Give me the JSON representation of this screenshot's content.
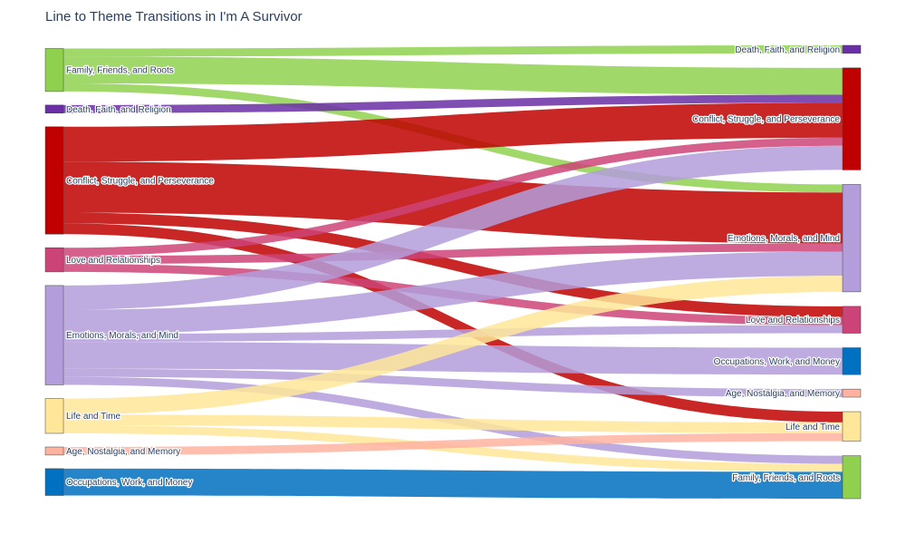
{
  "chart_data": {
    "type": "sankey",
    "title": "Line to Theme Transitions in I'm A Survivor",
    "source_nodes": [
      {
        "id": "s_family",
        "label": "Family, Friends, and Roots",
        "color": "#8fd14f"
      },
      {
        "id": "s_death",
        "label": "Death, Faith, and Religion",
        "color": "#6a2ea6"
      },
      {
        "id": "s_conflict",
        "label": "Conflict, Struggle, and Perseverance",
        "color": "#c00000"
      },
      {
        "id": "s_love",
        "label": "Love and Relationships",
        "color": "#cc4477"
      },
      {
        "id": "s_emotions",
        "label": "Emotions, Morals, and Mind",
        "color": "#b39ddb"
      },
      {
        "id": "s_life",
        "label": "Life and Time",
        "color": "#ffe699"
      },
      {
        "id": "s_age",
        "label": "Age, Nostalgia, and Memory",
        "color": "#ffb3a0"
      },
      {
        "id": "s_occupations",
        "label": "Occupations, Work, and Money",
        "color": "#0070c0"
      }
    ],
    "target_nodes": [
      {
        "id": "t_death",
        "label": "Death, Faith, and Religion",
        "color": "#6a2ea6"
      },
      {
        "id": "t_conflict",
        "label": "Conflict, Struggle, and Perseverance",
        "color": "#c00000"
      },
      {
        "id": "t_emotions",
        "label": "Emotions, Morals, and Mind",
        "color": "#b39ddb"
      },
      {
        "id": "t_love",
        "label": "Love and Relationships",
        "color": "#cc4477"
      },
      {
        "id": "t_occupations",
        "label": "Occupations, Work, and Money",
        "color": "#0070c0"
      },
      {
        "id": "t_age",
        "label": "Age, Nostalgia, and Memory",
        "color": "#ffb3a0"
      },
      {
        "id": "t_life",
        "label": "Life and Time",
        "color": "#ffe699"
      },
      {
        "id": "t_family",
        "label": "Family, Friends, and Roots",
        "color": "#8fd14f"
      }
    ],
    "links": [
      {
        "source": "s_family",
        "target": "t_death",
        "value": 3
      },
      {
        "source": "s_family",
        "target": "t_conflict",
        "value": 10
      },
      {
        "source": "s_family",
        "target": "t_emotions",
        "value": 3
      },
      {
        "source": "s_death",
        "target": "t_conflict",
        "value": 3
      },
      {
        "source": "s_conflict",
        "target": "t_conflict",
        "value": 13
      },
      {
        "source": "s_conflict",
        "target": "t_emotions",
        "value": 19
      },
      {
        "source": "s_conflict",
        "target": "t_love",
        "value": 4
      },
      {
        "source": "s_conflict",
        "target": "t_life",
        "value": 4
      },
      {
        "source": "s_love",
        "target": "t_conflict",
        "value": 3
      },
      {
        "source": "s_love",
        "target": "t_emotions",
        "value": 3
      },
      {
        "source": "s_love",
        "target": "t_love",
        "value": 3
      },
      {
        "source": "s_emotions",
        "target": "t_conflict",
        "value": 9
      },
      {
        "source": "s_emotions",
        "target": "t_emotions",
        "value": 9
      },
      {
        "source": "s_emotions",
        "target": "t_love",
        "value": 3
      },
      {
        "source": "s_emotions",
        "target": "t_occupations",
        "value": 10
      },
      {
        "source": "s_emotions",
        "target": "t_age",
        "value": 3
      },
      {
        "source": "s_emotions",
        "target": "t_family",
        "value": 3
      },
      {
        "source": "s_life",
        "target": "t_emotions",
        "value": 6
      },
      {
        "source": "s_life",
        "target": "t_life",
        "value": 4
      },
      {
        "source": "s_life",
        "target": "t_family",
        "value": 3
      },
      {
        "source": "s_age",
        "target": "t_life",
        "value": 3
      },
      {
        "source": "s_occupations",
        "target": "t_family",
        "value": 10
      }
    ]
  }
}
